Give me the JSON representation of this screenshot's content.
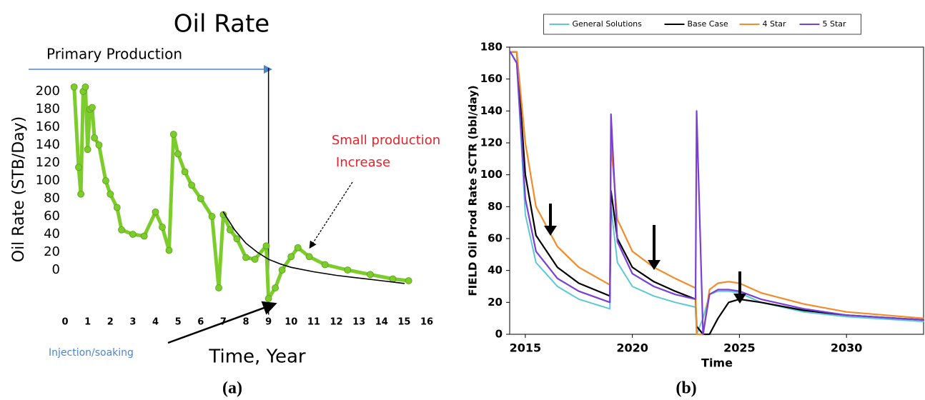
{
  "chart_data": [
    {
      "type": "line",
      "title": "Oil Rate",
      "annotation_primary": "Primary Production",
      "annotation_increase": [
        "Small production",
        "Increase"
      ],
      "annotation_injection": "Injection/soaking",
      "xlabel": "Time, Year",
      "ylabel": "Oil Rate (STB/Day)",
      "caption": "(a)",
      "xlim": [
        0,
        16
      ],
      "xticks": [
        0,
        1,
        2,
        3,
        4,
        5,
        6,
        7,
        8,
        9,
        10,
        11,
        12,
        13,
        14,
        15,
        16
      ],
      "ylim": [
        -50,
        210
      ],
      "yticks": [
        0,
        20,
        40,
        60,
        80,
        100,
        120,
        140,
        160,
        180,
        200
      ],
      "vline": 9,
      "series": [
        {
          "color": "#7ccc2c",
          "markers": true,
          "x": [
            0.4,
            0.6,
            0.7,
            0.8,
            0.9,
            1.0,
            1.1,
            1.2,
            1.3,
            1.5,
            1.8,
            2.0,
            2.3,
            2.5,
            3.0,
            3.5,
            4.0,
            4.3,
            4.6,
            4.8,
            5.0,
            5.3,
            5.6,
            6.0,
            6.5,
            6.8,
            7.0,
            7.3,
            7.6,
            8.0,
            8.4,
            8.9,
            9.0,
            9.3,
            9.6,
            10.0,
            10.3,
            10.8,
            11.5,
            12.5,
            13.5,
            14.5,
            15.2
          ],
          "values": [
            205,
            115,
            85,
            200,
            205,
            135,
            180,
            182,
            148,
            140,
            100,
            85,
            70,
            45,
            40,
            38,
            65,
            48,
            22,
            152,
            130,
            110,
            95,
            80,
            60,
            -20,
            62,
            45,
            35,
            14,
            12,
            27,
            -32,
            -20,
            0,
            15,
            25,
            15,
            6,
            0,
            -5,
            -10,
            -12
          ]
        },
        {
          "color": "#000000",
          "markers": false,
          "x": [
            7.0,
            7.5,
            8.0,
            8.5,
            9.0,
            9.5,
            10,
            11,
            12,
            13,
            14,
            15
          ],
          "values": [
            65,
            45,
            30,
            20,
            12,
            7,
            3,
            -2,
            -6,
            -9,
            -12,
            -15
          ]
        }
      ]
    },
    {
      "type": "line",
      "xlabel": "Time",
      "ylabel": "FIELD Oil Prod Rate SCTR (bbl/day)",
      "caption": "(b)",
      "legend": "top",
      "xlim": [
        2014.27,
        2033.6
      ],
      "xticks": [
        2015,
        2020,
        2025,
        2030
      ],
      "ylim": [
        0,
        180
      ],
      "yticks": [
        0,
        20,
        40,
        60,
        80,
        100,
        120,
        140,
        160,
        180
      ],
      "x": [
        2014.3,
        2014.6,
        2015.0,
        2015.5,
        2016.5,
        2017.5,
        2018.95,
        2019.0,
        2019.3,
        2020,
        2021,
        2022,
        2022.95,
        2023.0,
        2023.3,
        2023.6,
        2024.0,
        2024.5,
        2025.0,
        2026,
        2028,
        2030,
        2033.6
      ],
      "series": [
        {
          "name": "General Solutions",
          "color": "#5cc8d6",
          "values": [
            177,
            170,
            75,
            45,
            30,
            22,
            16,
            80,
            45,
            30,
            24,
            20,
            17,
            0,
            10,
            25,
            27,
            27,
            26,
            20,
            14,
            11,
            8
          ]
        },
        {
          "name": "Base Case",
          "color": "#000000",
          "values": [
            177,
            177,
            100,
            62,
            42,
            32,
            24,
            90,
            60,
            42,
            33,
            27,
            22,
            5,
            0,
            0,
            10,
            20,
            22,
            20,
            15,
            12,
            9
          ]
        },
        {
          "name": "4 Star",
          "color": "#f28c28",
          "values": [
            177,
            177,
            120,
            80,
            55,
            42,
            31,
            120,
            72,
            52,
            42,
            35,
            29,
            0,
            0,
            28,
            32,
            33,
            32,
            26,
            19,
            14,
            10
          ]
        },
        {
          "name": "5 Star",
          "color": "#7a3fd6",
          "values": [
            177,
            170,
            85,
            52,
            35,
            27,
            20,
            138,
            58,
            38,
            30,
            25,
            22,
            140,
            0,
            25,
            28,
            28,
            27,
            22,
            16,
            12,
            9
          ]
        }
      ]
    }
  ]
}
